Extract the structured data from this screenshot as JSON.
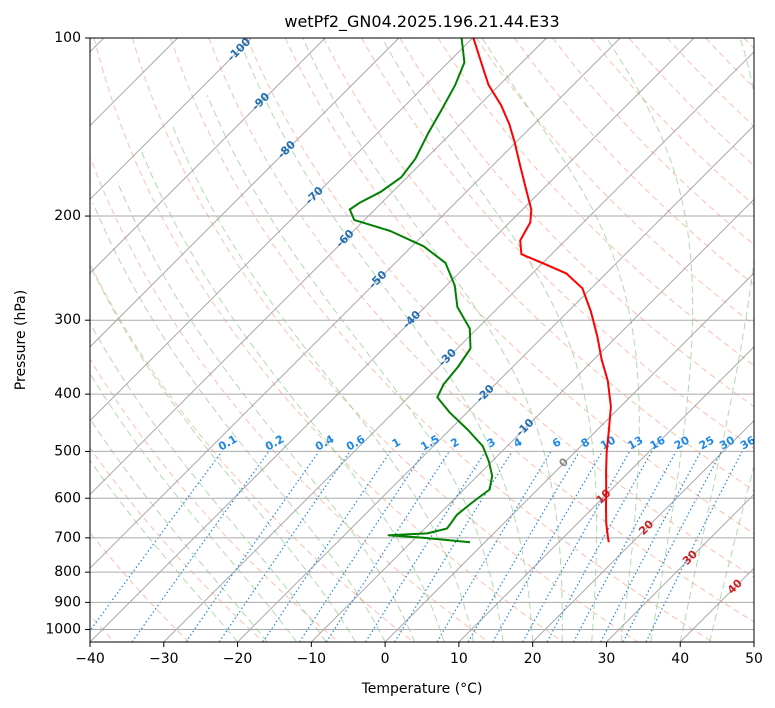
{
  "chart_data": {
    "type": "line",
    "title": "wetPf2_GN04.2025.196.21.44.E33",
    "xlabel": "Temperature (°C)",
    "ylabel": "Pressure (hPa)",
    "xlim": [
      -40,
      50
    ],
    "ylim": [
      1050,
      100
    ],
    "y_scale": "log",
    "skew_t": true,
    "grid": true,
    "x_ticks": [
      "−40",
      "−30",
      "−20",
      "−10",
      "0",
      "10",
      "20",
      "30",
      "40",
      "50"
    ],
    "y_ticks": [
      "100",
      "200",
      "300",
      "400",
      "500",
      "600",
      "700",
      "800",
      "900",
      "1000"
    ],
    "colors": {
      "temperature": "#ff0000",
      "dewpoint": "#008000",
      "dry_adiabat": "#fc8d6d",
      "moist_adiabat": "#88c488",
      "mixing_ratio": "#1e88e5",
      "isotherm": "#999999",
      "label_blue": "#1f6eb4",
      "label_red": "#cc2222"
    },
    "isotherm_labels": [
      "-100",
      "-90",
      "-80",
      "-70",
      "-60",
      "-50",
      "-40",
      "-30",
      "-20",
      "-10",
      "0",
      "10",
      "20",
      "30",
      "40"
    ],
    "mixing_ratio_labels": [
      "0.1",
      "0.2",
      "0.4",
      "0.6",
      "1",
      "1.5",
      "2",
      "3",
      "4",
      "6",
      "8",
      "10",
      "13",
      "16",
      "20",
      "25",
      "30",
      "36"
    ],
    "series": [
      {
        "name": "",
        "role": "temperature",
        "points": [
          {
            "p": 712,
            "t": 16.8
          },
          {
            "p": 700,
            "t": 16.1
          },
          {
            "p": 660,
            "t": 13.8
          },
          {
            "p": 620,
            "t": 11.6
          },
          {
            "p": 580,
            "t": 9.3
          },
          {
            "p": 540,
            "t": 6.8
          },
          {
            "p": 500,
            "t": 4.2
          },
          {
            "p": 460,
            "t": 1.6
          },
          {
            "p": 420,
            "t": -1.3
          },
          {
            "p": 380,
            "t": -5.2
          },
          {
            "p": 350,
            "t": -8.9
          },
          {
            "p": 320,
            "t": -12.6
          },
          {
            "p": 290,
            "t": -16.9
          },
          {
            "p": 265,
            "t": -21.2
          },
          {
            "p": 250,
            "t": -25.4
          },
          {
            "p": 240,
            "t": -30.1
          },
          {
            "p": 232,
            "t": -34.1
          },
          {
            "p": 220,
            "t": -36.1
          },
          {
            "p": 205,
            "t": -37.2
          },
          {
            "p": 195,
            "t": -38.8
          },
          {
            "p": 180,
            "t": -42.3
          },
          {
            "p": 165,
            "t": -46.1
          },
          {
            "p": 150,
            "t": -50.2
          },
          {
            "p": 140,
            "t": -53.3
          },
          {
            "p": 130,
            "t": -57.0
          },
          {
            "p": 120,
            "t": -61.5
          },
          {
            "p": 112,
            "t": -64.7
          },
          {
            "p": 100,
            "t": -69.9
          }
        ]
      },
      {
        "name": "",
        "role": "dewpoint",
        "points": [
          {
            "p": 712,
            "t": -2.0
          },
          {
            "p": 700,
            "t": -9.0
          },
          {
            "p": 693,
            "t": -14.0
          },
          {
            "p": 688,
            "t": -9.0
          },
          {
            "p": 675,
            "t": -7.0
          },
          {
            "p": 660,
            "t": -7.2
          },
          {
            "p": 640,
            "t": -7.5
          },
          {
            "p": 610,
            "t": -7.1
          },
          {
            "p": 580,
            "t": -6.5
          },
          {
            "p": 550,
            "t": -8.0
          },
          {
            "p": 520,
            "t": -10.4
          },
          {
            "p": 490,
            "t": -13.3
          },
          {
            "p": 460,
            "t": -17.5
          },
          {
            "p": 430,
            "t": -22.3
          },
          {
            "p": 405,
            "t": -26.1
          },
          {
            "p": 385,
            "t": -27.0
          },
          {
            "p": 360,
            "t": -27.4
          },
          {
            "p": 335,
            "t": -28.2
          },
          {
            "p": 310,
            "t": -31.0
          },
          {
            "p": 285,
            "t": -35.6
          },
          {
            "p": 262,
            "t": -38.9
          },
          {
            "p": 240,
            "t": -43.2
          },
          {
            "p": 225,
            "t": -48.4
          },
          {
            "p": 212,
            "t": -55.0
          },
          {
            "p": 203,
            "t": -61.4
          },
          {
            "p": 195,
            "t": -63.4
          },
          {
            "p": 190,
            "t": -63.0
          },
          {
            "p": 182,
            "t": -61.6
          },
          {
            "p": 172,
            "t": -60.8
          },
          {
            "p": 160,
            "t": -61.4
          },
          {
            "p": 145,
            "t": -63.1
          },
          {
            "p": 132,
            "t": -64.5
          },
          {
            "p": 120,
            "t": -66.0
          },
          {
            "p": 110,
            "t": -67.8
          },
          {
            "p": 100,
            "t": -71.5
          }
        ]
      }
    ]
  }
}
